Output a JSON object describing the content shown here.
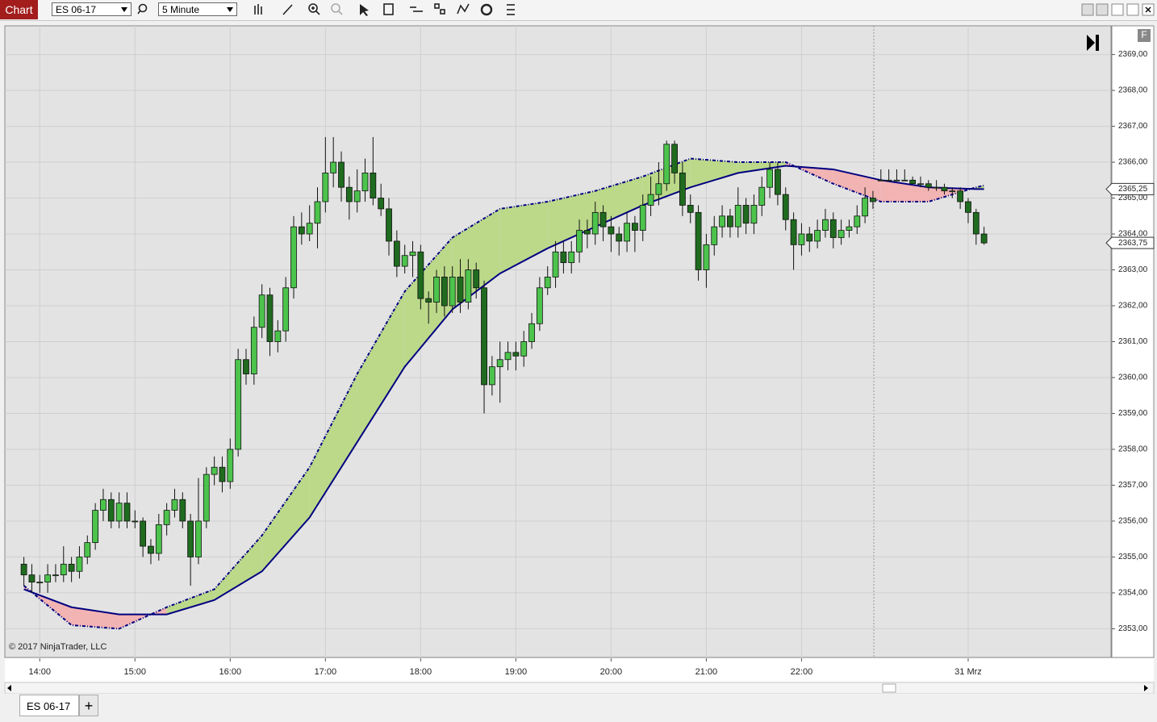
{
  "toolbar": {
    "title": "Chart",
    "instrument": "ES 06-17",
    "interval": "5 Minute"
  },
  "panel_button": "F",
  "tabs": [
    "ES 06-17"
  ],
  "tab_add": "+",
  "chart_data": {
    "type": "candlestick",
    "watermark": "© 2017 NinjaTrader, LLC",
    "up_color": "#4cc44c",
    "down_color": "#1f6b1f",
    "fill_colors": {
      "above": "#bcd98a",
      "below": "#f2b3b3"
    },
    "grid": true,
    "xlim": [
      -2.4,
      137
    ],
    "ylim": [
      2352.2,
      2369.8
    ],
    "xticks": [
      {
        "value": 2,
        "label": "14:00"
      },
      {
        "value": 14,
        "label": "15:00"
      },
      {
        "value": 26,
        "label": "16:00"
      },
      {
        "value": 38,
        "label": "17:00"
      },
      {
        "value": 50,
        "label": "18:00"
      },
      {
        "value": 62,
        "label": "19:00"
      },
      {
        "value": 74,
        "label": "20:00"
      },
      {
        "value": 86,
        "label": "21:00"
      },
      {
        "value": 98,
        "label": "22:00"
      },
      {
        "value": 119,
        "label": "31 Mrz"
      }
    ],
    "yticks": [
      {
        "value": 2353,
        "label": "2353,00"
      },
      {
        "value": 2354,
        "label": "2354,00"
      },
      {
        "value": 2355,
        "label": "2355,00"
      },
      {
        "value": 2356,
        "label": "2356,00"
      },
      {
        "value": 2357,
        "label": "2357,00"
      },
      {
        "value": 2358,
        "label": "2358,00"
      },
      {
        "value": 2359,
        "label": "2359,00"
      },
      {
        "value": 2360,
        "label": "2360,00"
      },
      {
        "value": 2361,
        "label": "2361,00"
      },
      {
        "value": 2362,
        "label": "2362,00"
      },
      {
        "value": 2363,
        "label": "2363,00"
      },
      {
        "value": 2364,
        "label": "2364,00"
      },
      {
        "value": 2365,
        "label": "2365,00"
      },
      {
        "value": 2366,
        "label": "2366,00"
      },
      {
        "value": 2367,
        "label": "2367,00"
      },
      {
        "value": 2368,
        "label": "2368,00"
      },
      {
        "value": 2369,
        "label": "2369,00"
      }
    ],
    "price_markers": [
      {
        "value": 2365.25,
        "label": "2365,25"
      },
      {
        "value": 2363.75,
        "label": "2363,75"
      }
    ],
    "ohlc": [
      [
        2354.8,
        2355.0,
        2354.2,
        2354.5
      ],
      [
        2354.5,
        2354.8,
        2354.0,
        2354.3
      ],
      [
        2354.3,
        2354.5,
        2354.0,
        2354.3
      ],
      [
        2354.3,
        2354.8,
        2354.0,
        2354.5
      ],
      [
        2354.5,
        2354.8,
        2354.3,
        2354.5
      ],
      [
        2354.5,
        2355.3,
        2354.3,
        2354.8
      ],
      [
        2354.8,
        2355.0,
        2354.3,
        2354.6
      ],
      [
        2354.6,
        2355.3,
        2354.4,
        2355.0
      ],
      [
        2355.0,
        2355.6,
        2354.8,
        2355.4
      ],
      [
        2355.4,
        2356.5,
        2355.2,
        2356.3
      ],
      [
        2356.3,
        2356.9,
        2356.0,
        2356.6
      ],
      [
        2356.6,
        2356.8,
        2355.8,
        2356.0
      ],
      [
        2356.0,
        2356.8,
        2355.8,
        2356.5
      ],
      [
        2356.5,
        2356.8,
        2355.8,
        2356.0
      ],
      [
        2356.0,
        2356.3,
        2355.8,
        2356.0
      ],
      [
        2356.0,
        2356.1,
        2355.0,
        2355.3
      ],
      [
        2355.3,
        2355.5,
        2354.8,
        2355.1
      ],
      [
        2355.1,
        2356.2,
        2354.9,
        2355.9
      ],
      [
        2355.9,
        2356.5,
        2355.6,
        2356.3
      ],
      [
        2356.3,
        2356.9,
        2356.1,
        2356.6
      ],
      [
        2356.6,
        2356.8,
        2355.8,
        2356.0
      ],
      [
        2356.0,
        2356.2,
        2354.2,
        2355.0
      ],
      [
        2355.0,
        2357.2,
        2354.8,
        2356.0
      ],
      [
        2356.0,
        2357.5,
        2355.8,
        2357.3
      ],
      [
        2357.3,
        2357.8,
        2357.0,
        2357.5
      ],
      [
        2357.5,
        2357.8,
        2356.8,
        2357.1
      ],
      [
        2357.1,
        2358.3,
        2356.9,
        2358.0
      ],
      [
        2358.0,
        2360.8,
        2357.8,
        2360.5
      ],
      [
        2360.5,
        2360.8,
        2359.8,
        2360.1
      ],
      [
        2360.1,
        2361.7,
        2359.8,
        2361.4
      ],
      [
        2361.4,
        2362.6,
        2361.1,
        2362.3
      ],
      [
        2362.3,
        2362.5,
        2360.6,
        2361.0
      ],
      [
        2361.0,
        2361.6,
        2360.7,
        2361.3
      ],
      [
        2361.3,
        2362.8,
        2361.0,
        2362.5
      ],
      [
        2362.5,
        2364.5,
        2362.2,
        2364.2
      ],
      [
        2364.2,
        2364.6,
        2363.7,
        2364.0
      ],
      [
        2364.0,
        2364.8,
        2363.8,
        2364.3
      ],
      [
        2364.3,
        2365.3,
        2363.6,
        2364.9
      ],
      [
        2364.9,
        2366.7,
        2364.6,
        2365.7
      ],
      [
        2365.7,
        2366.7,
        2365.3,
        2366.0
      ],
      [
        2366.0,
        2366.3,
        2364.9,
        2365.3
      ],
      [
        2365.3,
        2365.6,
        2364.4,
        2364.9
      ],
      [
        2364.9,
        2365.8,
        2364.6,
        2365.2
      ],
      [
        2365.2,
        2366.1,
        2364.9,
        2365.7
      ],
      [
        2365.7,
        2366.7,
        2364.8,
        2365.0
      ],
      [
        2365.0,
        2365.4,
        2364.5,
        2364.7
      ],
      [
        2364.7,
        2365.0,
        2363.4,
        2363.8
      ],
      [
        2363.8,
        2364.1,
        2362.8,
        2363.1
      ],
      [
        2363.1,
        2363.7,
        2362.9,
        2363.4
      ],
      [
        2363.4,
        2363.8,
        2362.8,
        2363.5
      ],
      [
        2363.5,
        2363.7,
        2361.9,
        2362.2
      ],
      [
        2362.2,
        2362.4,
        2361.5,
        2362.1
      ],
      [
        2362.1,
        2363.0,
        2361.8,
        2362.8
      ],
      [
        2362.8,
        2363.1,
        2361.7,
        2362.0
      ],
      [
        2362.0,
        2363.1,
        2361.8,
        2362.8
      ],
      [
        2362.8,
        2363.3,
        2361.8,
        2362.1
      ],
      [
        2362.1,
        2363.3,
        2361.9,
        2363.0
      ],
      [
        2363.0,
        2363.2,
        2362.2,
        2362.5
      ],
      [
        2362.5,
        2362.7,
        2359.0,
        2359.8
      ],
      [
        2359.8,
        2360.6,
        2359.5,
        2360.3
      ],
      [
        2360.3,
        2361.0,
        2359.3,
        2360.5
      ],
      [
        2360.5,
        2361.0,
        2360.2,
        2360.7
      ],
      [
        2360.7,
        2361.0,
        2360.2,
        2360.6
      ],
      [
        2360.6,
        2361.3,
        2360.3,
        2361.0
      ],
      [
        2361.0,
        2361.8,
        2360.8,
        2361.5
      ],
      [
        2361.5,
        2362.8,
        2361.3,
        2362.5
      ],
      [
        2362.5,
        2363.1,
        2362.3,
        2362.8
      ],
      [
        2362.8,
        2363.8,
        2362.5,
        2363.5
      ],
      [
        2363.5,
        2363.8,
        2362.9,
        2363.2
      ],
      [
        2363.2,
        2363.8,
        2362.9,
        2363.5
      ],
      [
        2363.5,
        2364.4,
        2363.2,
        2364.1
      ],
      [
        2364.1,
        2364.4,
        2363.6,
        2364.0
      ],
      [
        2364.0,
        2364.9,
        2363.7,
        2364.6
      ],
      [
        2364.6,
        2364.8,
        2363.8,
        2364.2
      ],
      [
        2364.2,
        2364.5,
        2363.5,
        2364.0
      ],
      [
        2364.0,
        2364.2,
        2363.4,
        2363.8
      ],
      [
        2363.8,
        2364.6,
        2363.5,
        2364.3
      ],
      [
        2364.3,
        2364.5,
        2363.5,
        2364.1
      ],
      [
        2364.1,
        2365.1,
        2363.8,
        2364.8
      ],
      [
        2364.8,
        2365.6,
        2364.5,
        2365.1
      ],
      [
        2365.1,
        2366.0,
        2364.8,
        2365.4
      ],
      [
        2365.4,
        2366.6,
        2365.2,
        2366.5
      ],
      [
        2366.5,
        2366.6,
        2365.4,
        2365.7
      ],
      [
        2365.7,
        2366.0,
        2364.5,
        2364.8
      ],
      [
        2364.8,
        2365.1,
        2364.3,
        2364.6
      ],
      [
        2364.6,
        2364.8,
        2362.7,
        2363.0
      ],
      [
        2363.0,
        2364.0,
        2362.5,
        2363.7
      ],
      [
        2363.7,
        2364.5,
        2363.4,
        2364.2
      ],
      [
        2364.2,
        2364.8,
        2363.9,
        2364.5
      ],
      [
        2364.5,
        2364.7,
        2363.9,
        2364.2
      ],
      [
        2364.2,
        2365.3,
        2363.9,
        2364.8
      ],
      [
        2364.8,
        2365.0,
        2364.0,
        2364.3
      ],
      [
        2364.3,
        2365.1,
        2364.0,
        2364.8
      ],
      [
        2364.8,
        2365.6,
        2364.5,
        2365.3
      ],
      [
        2365.3,
        2366.0,
        2365.0,
        2365.8
      ],
      [
        2365.8,
        2366.0,
        2364.8,
        2365.1
      ],
      [
        2365.1,
        2365.3,
        2364.1,
        2364.4
      ],
      [
        2364.4,
        2364.6,
        2363.0,
        2363.7
      ],
      [
        2363.7,
        2364.3,
        2363.4,
        2364.0
      ],
      [
        2364.0,
        2364.2,
        2363.5,
        2363.8
      ],
      [
        2363.8,
        2364.4,
        2363.6,
        2364.1
      ],
      [
        2364.1,
        2364.7,
        2363.9,
        2364.4
      ],
      [
        2364.4,
        2364.6,
        2363.6,
        2363.9
      ],
      [
        2363.9,
        2364.4,
        2363.7,
        2364.1
      ],
      [
        2364.1,
        2364.4,
        2363.9,
        2364.2
      ],
      [
        2364.2,
        2364.8,
        2364.0,
        2364.5
      ],
      [
        2364.5,
        2365.3,
        2364.3,
        2365.0
      ],
      [
        2365.0,
        2365.2,
        2364.7,
        2364.9
      ],
      [
        2365.5,
        2365.8,
        2365.5,
        2365.5
      ],
      [
        2365.5,
        2365.8,
        2365.5,
        2365.5
      ],
      [
        2365.5,
        2365.8,
        2365.5,
        2365.5
      ],
      [
        2365.5,
        2365.8,
        2365.5,
        2365.5
      ],
      [
        2365.5,
        2365.6,
        2365.4,
        2365.4
      ],
      [
        2365.4,
        2365.6,
        2365.3,
        2365.4
      ],
      [
        2365.4,
        2365.5,
        2365.2,
        2365.3
      ],
      [
        2365.3,
        2365.5,
        2365.2,
        2365.3
      ],
      [
        2365.3,
        2365.4,
        2365.1,
        2365.2
      ],
      [
        2365.2,
        2365.3,
        2365.0,
        2365.2
      ],
      [
        2365.2,
        2365.3,
        2364.7,
        2364.9
      ],
      [
        2364.9,
        2365.0,
        2364.3,
        2364.6
      ],
      [
        2364.6,
        2364.7,
        2363.7,
        2364.0
      ],
      [
        2364.0,
        2364.2,
        2363.7,
        2363.75
      ]
    ],
    "series": [
      {
        "color": "#000080",
        "dash": false,
        "x": [
          0,
          6,
          12,
          18,
          24,
          30,
          36,
          42,
          48,
          54,
          60,
          66,
          72,
          78,
          84,
          90,
          96,
          102,
          108,
          114,
          120,
          121
        ],
        "values": [
          2354.1,
          2353.6,
          2353.4,
          2353.4,
          2353.8,
          2354.6,
          2356.1,
          2358.2,
          2360.3,
          2361.9,
          2362.9,
          2363.6,
          2364.2,
          2364.8,
          2365.3,
          2365.7,
          2365.9,
          2365.8,
          2365.5,
          2365.3,
          2365.25,
          2365.25
        ]
      },
      {
        "color": "#000080",
        "dash": true,
        "x": [
          0,
          6,
          12,
          18,
          24,
          30,
          36,
          42,
          48,
          54,
          60,
          66,
          72,
          78,
          84,
          90,
          96,
          102,
          108,
          114,
          120,
          121
        ],
        "values": [
          2354.2,
          2353.1,
          2353.0,
          2353.6,
          2354.1,
          2355.6,
          2357.5,
          2360.1,
          2362.4,
          2363.9,
          2364.7,
          2364.9,
          2365.2,
          2365.6,
          2366.1,
          2366.0,
          2366.0,
          2365.4,
          2364.9,
          2364.9,
          2365.3,
          2365.35
        ]
      }
    ]
  }
}
